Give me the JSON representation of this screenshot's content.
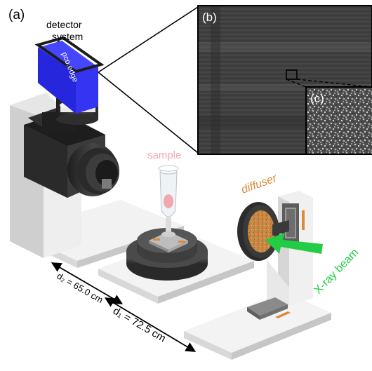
{
  "panels": {
    "a": "(a)",
    "b": "(b)",
    "c": "(c)"
  },
  "labels": {
    "detector_line1": "detector",
    "detector_line2": "system",
    "camera_brand": "pco.edge",
    "sample": "sample",
    "diffuser": "diffuser",
    "beam": "X-ray beam",
    "d2": "d₂ = 65.0 cm",
    "d1": "d₁ = 72.5 cm"
  },
  "colors": {
    "camera_blue": "#2323e6",
    "beam_green": "#22cc44",
    "diffuser_orange": "#d98b3a",
    "sample_pink": "#f2a8b0",
    "dark_body": "#262626"
  }
}
